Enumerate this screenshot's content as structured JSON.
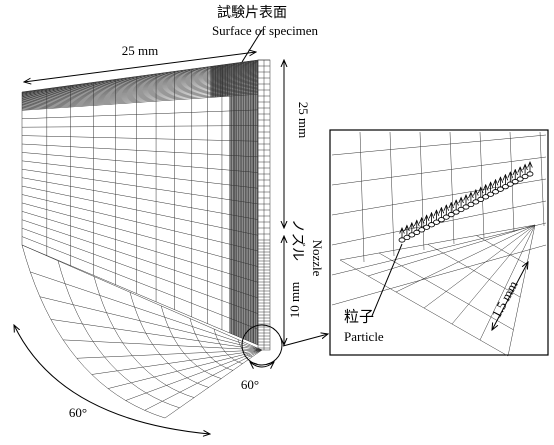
{
  "labels": {
    "surface_ja": "試験片表面",
    "surface_en": "Surface of specimen",
    "width_dim": "25 mm",
    "height_dim": "25 mm",
    "nozzle_dim": "10 mm",
    "nozzle_ja": "ノズル",
    "nozzle_en": "Nozzle",
    "nozzle_angle": "60°",
    "fan_angle": "60°",
    "particle_ja": "粒子",
    "particle_en": "Particle",
    "zoom_dim": "1.5 mm"
  }
}
